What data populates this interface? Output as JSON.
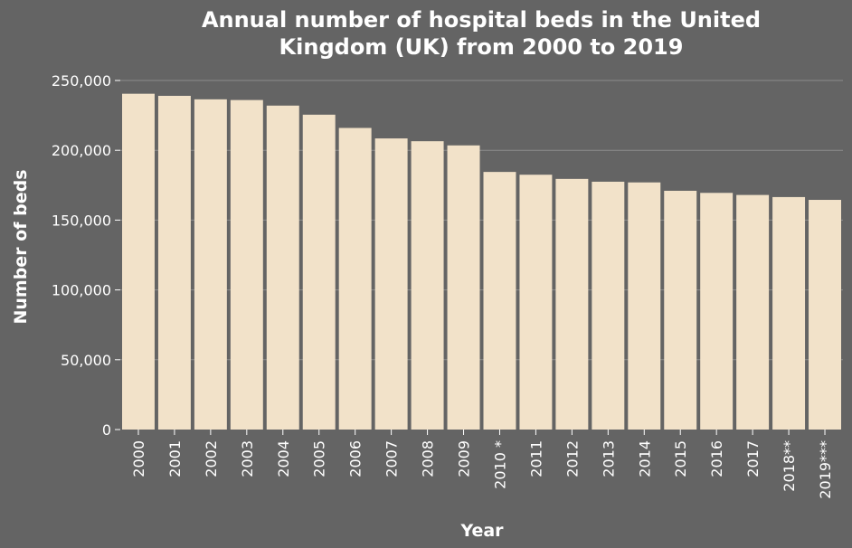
{
  "chart_data": {
    "type": "bar",
    "title_lines": [
      "Annual number of hospital beds in the United",
      "Kingdom (UK) from 2000 to 2019"
    ],
    "xlabel": "Year",
    "ylabel": "Number of beds",
    "categories": [
      "2000",
      "2001",
      "2002",
      "2003",
      "2004",
      "2005",
      "2006",
      "2007",
      "2008",
      "2009",
      "2010 *",
      "2011",
      "2012",
      "2013",
      "2014",
      "2015",
      "2016",
      "2017",
      "2018**",
      "2019***"
    ],
    "values": [
      240500,
      239000,
      236500,
      236000,
      232000,
      225500,
      216000,
      208500,
      206500,
      203500,
      184500,
      182500,
      179500,
      177500,
      177000,
      171000,
      169500,
      168000,
      166500,
      164500
    ],
    "ylim": [
      0,
      250000
    ],
    "yticks": [
      0,
      50000,
      100000,
      150000,
      200000,
      250000
    ],
    "ytick_labels": [
      "0",
      "50,000",
      "100,000",
      "150,000",
      "200,000",
      "250,000"
    ],
    "grid": true,
    "colors": {
      "background": "#646464",
      "plot_area": "#646464",
      "bar": "#f2e2c9",
      "gridline": "#8c8c8c",
      "text": "#ffffff"
    }
  }
}
